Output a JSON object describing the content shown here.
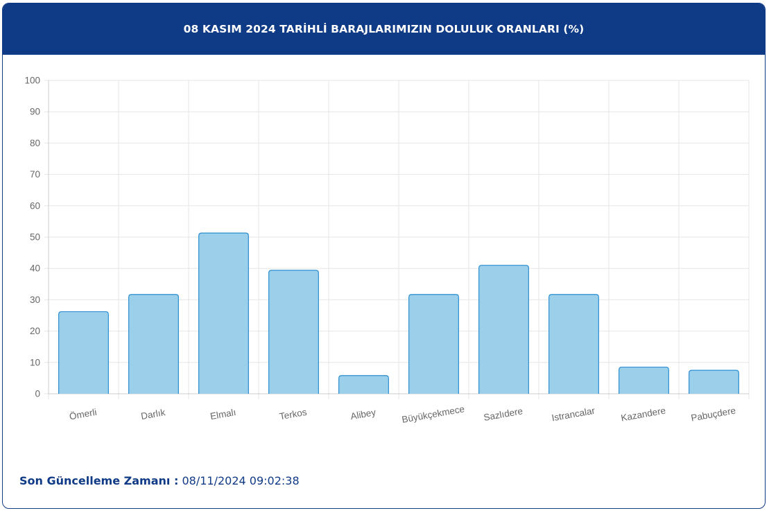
{
  "header": {
    "title": "08 KASIM 2024 TARİHLİ BARAJLARIMIZIN DOLULUK ORANLARI (%)"
  },
  "footer": {
    "label": "Son Güncelleme Zamanı :",
    "value": "08/11/2024 09:02:38"
  },
  "colors": {
    "header_bg": "#0f3a86",
    "bar_fill": "#9ccfea",
    "bar_stroke": "#2b8fd1",
    "grid": "#e6e6e6",
    "tick_text": "#666666"
  },
  "chart_data": {
    "type": "bar",
    "categories": [
      "Ömerli",
      "Darlık",
      "Elmalı",
      "Terkos",
      "Alibey",
      "Büyükçekmece",
      "Sazlıdere",
      "Istrancalar",
      "Kazandere",
      "Pabuçdere"
    ],
    "values": [
      26.2,
      31.7,
      51.3,
      39.4,
      5.8,
      31.7,
      41.0,
      31.7,
      8.5,
      7.5
    ],
    "yticks": [
      "0",
      "10",
      "20",
      "30",
      "40",
      "50",
      "60",
      "70",
      "80",
      "90",
      "100"
    ],
    "ylim": [
      0,
      100
    ],
    "grid": true,
    "legend": "none"
  }
}
